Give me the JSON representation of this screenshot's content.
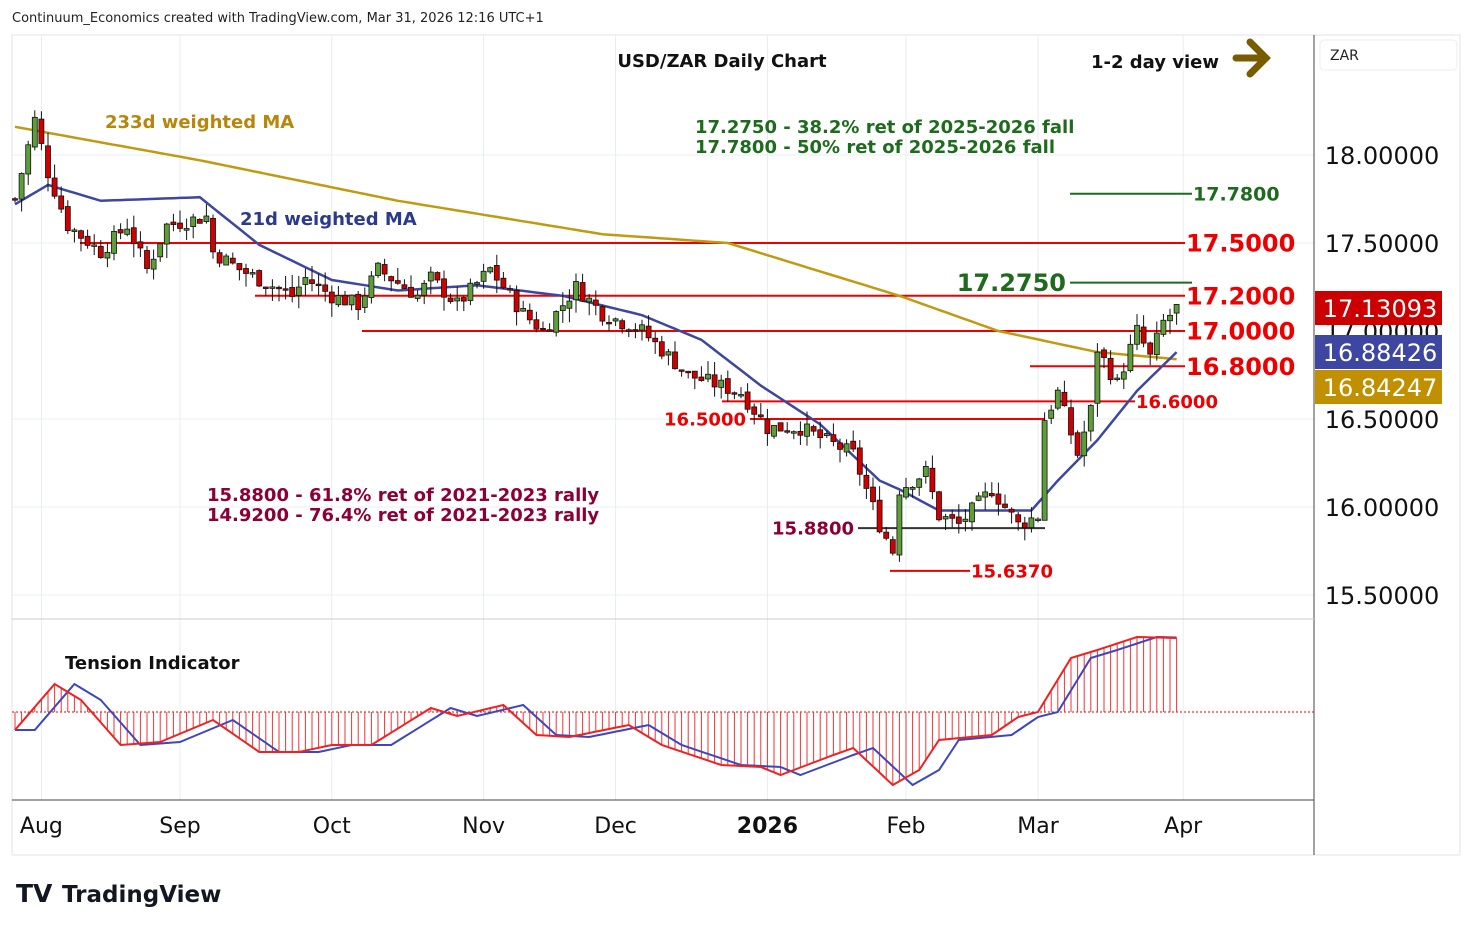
{
  "header": {
    "credit": "Continuum_Economics created with TradingView.com, Mar 31, 2026 12:16 UTC+1"
  },
  "chart_data": {
    "type": "candlestick",
    "title": "USD/ZAR Daily Chart",
    "view": "1-2 day view",
    "currency": "ZAR",
    "ylim": [
      15.35,
      18.4
    ],
    "y_ticks": [
      "18.00000",
      "17.50000",
      "16.50000",
      "16.00000",
      "15.50000"
    ],
    "y_tick_values": [
      18.0,
      17.5,
      16.5,
      16.0,
      15.5
    ],
    "x_ticks": [
      {
        "label": "Aug",
        "bar": 4
      },
      {
        "label": "Sep",
        "bar": 25
      },
      {
        "label": "Oct",
        "bar": 48
      },
      {
        "label": "Nov",
        "bar": 71
      },
      {
        "label": "Dec",
        "bar": 91
      },
      {
        "label": "2026",
        "bar": 114,
        "bold": true
      },
      {
        "label": "Feb",
        "bar": 135
      },
      {
        "label": "Mar",
        "bar": 155
      },
      {
        "label": "Apr",
        "bar": 177
      }
    ],
    "close_path": [
      [
        0,
        17.75
      ],
      [
        3,
        18.2
      ],
      [
        5,
        17.9
      ],
      [
        8,
        17.6
      ],
      [
        13,
        17.45
      ],
      [
        17,
        17.6
      ],
      [
        20,
        17.35
      ],
      [
        23,
        17.6
      ],
      [
        29,
        17.65
      ],
      [
        30,
        17.45
      ],
      [
        34,
        17.35
      ],
      [
        42,
        17.2
      ],
      [
        44,
        17.3
      ],
      [
        48,
        17.2
      ],
      [
        52,
        17.15
      ],
      [
        55,
        17.35
      ],
      [
        61,
        17.2
      ],
      [
        63,
        17.3
      ],
      [
        67,
        17.15
      ],
      [
        72,
        17.35
      ],
      [
        77,
        17.1
      ],
      [
        80,
        17.0
      ],
      [
        85,
        17.25
      ],
      [
        89,
        17.1
      ],
      [
        95,
        17.0
      ],
      [
        102,
        16.75
      ],
      [
        110,
        16.65
      ],
      [
        114,
        16.45
      ],
      [
        119,
        16.45
      ],
      [
        127,
        16.3
      ],
      [
        131,
        15.9
      ],
      [
        133,
        15.75
      ],
      [
        134,
        16.1
      ],
      [
        138,
        16.2
      ],
      [
        140,
        15.95
      ],
      [
        143,
        15.9
      ],
      [
        148,
        16.1
      ],
      [
        152,
        15.9
      ],
      [
        155,
        15.95
      ],
      [
        156,
        16.5
      ],
      [
        158,
        16.65
      ],
      [
        161,
        16.3
      ],
      [
        163,
        16.55
      ],
      [
        164,
        16.9
      ],
      [
        167,
        16.7
      ],
      [
        170,
        17.0
      ],
      [
        172,
        16.85
      ],
      [
        174,
        17.05
      ],
      [
        176,
        17.13
      ]
    ],
    "ma233": {
      "label": "233d weighted MA",
      "color": "#c09000",
      "last": "16.84247",
      "path": [
        [
          0,
          18.16
        ],
        [
          28,
          17.97
        ],
        [
          58,
          17.74
        ],
        [
          89,
          17.55
        ],
        [
          108,
          17.5
        ],
        [
          134,
          17.2
        ],
        [
          149,
          17.0
        ],
        [
          164,
          16.88
        ],
        [
          176,
          16.84
        ]
      ]
    },
    "ma21": {
      "label": "21d weighted MA",
      "color": "#3d46a0",
      "last": "16.88426",
      "path": [
        [
          0,
          17.72
        ],
        [
          5,
          17.83
        ],
        [
          13,
          17.74
        ],
        [
          28,
          17.76
        ],
        [
          37,
          17.49
        ],
        [
          48,
          17.29
        ],
        [
          58,
          17.23
        ],
        [
          70,
          17.26
        ],
        [
          83,
          17.2
        ],
        [
          95,
          17.09
        ],
        [
          104,
          16.95
        ],
        [
          113,
          16.69
        ],
        [
          122,
          16.47
        ],
        [
          131,
          16.15
        ],
        [
          134,
          16.1
        ],
        [
          140,
          15.98
        ],
        [
          146,
          15.98
        ],
        [
          154,
          15.98
        ],
        [
          158,
          16.15
        ],
        [
          164,
          16.38
        ],
        [
          170,
          16.66
        ],
        [
          176,
          16.88
        ]
      ]
    },
    "last_price": {
      "label": "17.13093",
      "color": "#cc0000"
    },
    "hidden_tick": "17.00000",
    "levels": [
      {
        "price": 17.78,
        "label": "17.7800",
        "color": "#1e6b1e"
      },
      {
        "price": 17.5,
        "label": "17.5000",
        "color": "#ee0000"
      },
      {
        "price": 17.275,
        "label": "17.2750",
        "color": "#1e6b1e"
      },
      {
        "price": 17.2,
        "label": "17.2000",
        "color": "#ee0000"
      },
      {
        "price": 17.0,
        "label": "17.0000",
        "color": "#ee0000"
      },
      {
        "price": 16.8,
        "label": "16.8000",
        "color": "#ee0000"
      },
      {
        "price": 16.6,
        "label": "16.6000",
        "color": "#ee0000"
      },
      {
        "price": 16.5,
        "label": "16.5000",
        "color": "#ee0000"
      },
      {
        "price": 15.88,
        "label": "15.8800",
        "color": "#8b0038"
      },
      {
        "price": 15.637,
        "label": "15.6370",
        "color": "#ee0000"
      }
    ],
    "notes": {
      "fib_up_1": "17.2750 - 38.2% ret of 2025-2026 fall",
      "fib_up_2": "17.7800 - 50% ret of 2025-2026 fall",
      "fib_dn_1": "15.8800 - 61.8% ret of 2021-2023 rally",
      "fib_dn_2": "14.9200 - 76.4% ret of 2021-2023 rally"
    },
    "tension": {
      "label": "Tension Indicator",
      "lag_bars": 3,
      "path": [
        [
          0,
          -18
        ],
        [
          6,
          28
        ],
        [
          10,
          12
        ],
        [
          16,
          -33
        ],
        [
          22,
          -30
        ],
        [
          30,
          -8
        ],
        [
          37,
          -40
        ],
        [
          43,
          -40
        ],
        [
          48,
          -33
        ],
        [
          54,
          -33
        ],
        [
          63,
          4
        ],
        [
          67,
          -4
        ],
        [
          74,
          7
        ],
        [
          79,
          -23
        ],
        [
          84,
          -25
        ],
        [
          93,
          -13
        ],
        [
          98,
          -33
        ],
        [
          107,
          -53
        ],
        [
          113,
          -55
        ],
        [
          116,
          -63
        ],
        [
          124,
          -43
        ],
        [
          127,
          -36
        ],
        [
          133,
          -73
        ],
        [
          137,
          -58
        ],
        [
          140,
          -28
        ],
        [
          148,
          -23
        ],
        [
          152,
          -5
        ],
        [
          155,
          0
        ],
        [
          160,
          54
        ],
        [
          164,
          62
        ],
        [
          170,
          75
        ],
        [
          176,
          74
        ]
      ]
    }
  },
  "footer": {
    "logo": "TradingView"
  }
}
